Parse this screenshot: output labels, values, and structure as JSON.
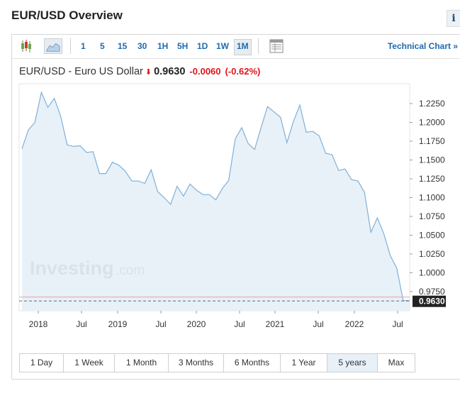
{
  "page": {
    "title": "EUR/USD Overview"
  },
  "toolbar": {
    "intervals": [
      "1",
      "5",
      "15",
      "30",
      "1H",
      "5H",
      "1D",
      "1W",
      "1M"
    ],
    "active_interval": "1M",
    "technical_chart_label": "Technical Chart »"
  },
  "quote": {
    "name": "EUR/USD - Euro US Dollar",
    "last": "0.9630",
    "change": "-0.0060",
    "change_pct": "(-0.62%)",
    "direction": "down"
  },
  "watermark": {
    "brand": "Investing",
    "suffix": ".com"
  },
  "range_buttons": [
    "1 Day",
    "1 Week",
    "1 Month",
    "3 Months",
    "6 Months",
    "1 Year",
    "5 years",
    "Max"
  ],
  "active_range": "5 years",
  "colors": {
    "line": "#7fb0d8",
    "area": "#e4eef7",
    "negative": "#e0151b",
    "link": "#1c6bb1"
  },
  "chart_data": {
    "type": "area",
    "x_tick_labels": [
      "2018",
      "Jul",
      "2019",
      "Jul",
      "2020",
      "Jul",
      "2021",
      "Jul",
      "2022",
      "Jul"
    ],
    "y_tick_labels": [
      "1.2250",
      "1.2000",
      "1.1750",
      "1.1500",
      "1.1250",
      "1.1000",
      "1.0750",
      "1.0500",
      "1.0250",
      "1.0000",
      "0.9750"
    ],
    "ylim": [
      0.96,
      1.24
    ],
    "last_price_label": "0.9630",
    "series": [
      {
        "x": [
          "2017-09",
          "2017-10",
          "2017-11",
          "2017-12",
          "2018-01",
          "2018-02",
          "2018-03",
          "2018-04",
          "2018-05",
          "2018-06",
          "2018-07",
          "2018-08",
          "2018-09",
          "2018-10",
          "2018-11",
          "2018-12",
          "2019-01",
          "2019-02",
          "2019-03",
          "2019-04",
          "2019-05",
          "2019-06",
          "2019-07",
          "2019-08",
          "2019-09",
          "2019-10",
          "2019-11",
          "2019-12",
          "2020-01",
          "2020-02",
          "2020-03",
          "2020-04",
          "2020-05",
          "2020-06",
          "2020-07",
          "2020-08",
          "2020-09",
          "2020-10",
          "2020-11",
          "2020-12",
          "2021-01",
          "2021-02",
          "2021-03",
          "2021-04",
          "2021-05",
          "2021-06",
          "2021-07",
          "2021-08",
          "2021-09",
          "2021-10",
          "2021-11",
          "2021-12",
          "2022-01",
          "2022-02",
          "2022-03",
          "2022-04",
          "2022-05",
          "2022-06",
          "2022-07",
          "2022-08",
          "2022-09"
        ],
        "values": [
          1.165,
          1.19,
          1.2,
          1.24,
          1.22,
          1.232,
          1.208,
          1.17,
          1.168,
          1.169,
          1.16,
          1.161,
          1.132,
          1.132,
          1.147,
          1.143,
          1.135,
          1.122,
          1.122,
          1.119,
          1.137,
          1.108,
          1.1,
          1.091,
          1.115,
          1.102,
          1.118,
          1.11,
          1.104,
          1.104,
          1.097,
          1.112,
          1.123,
          1.178,
          1.193,
          1.172,
          1.164,
          1.193,
          1.221,
          1.214,
          1.207,
          1.173,
          1.201,
          1.223,
          1.187,
          1.188,
          1.182,
          1.159,
          1.157,
          1.136,
          1.138,
          1.124,
          1.122,
          1.107,
          1.054,
          1.073,
          1.052,
          1.023,
          1.006,
          0.963,
          0.963
        ]
      }
    ]
  }
}
